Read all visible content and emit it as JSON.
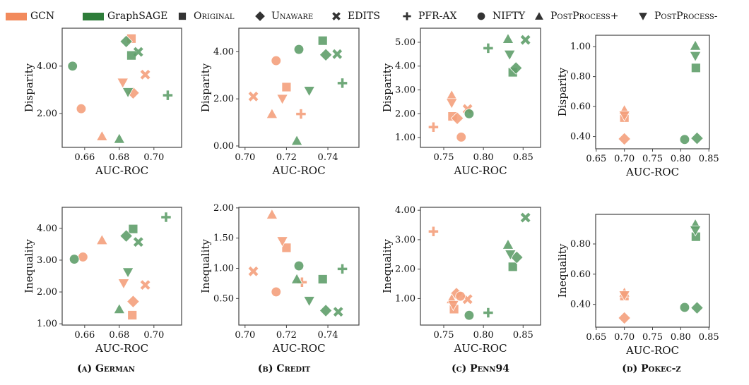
{
  "legend": {
    "models": [
      {
        "name": "GCN",
        "color": "#f28a5c"
      },
      {
        "name": "GraphSAGE",
        "color": "#2e7d3a"
      }
    ],
    "methods": [
      {
        "name": "Original",
        "marker": "square"
      },
      {
        "name": "Unaware",
        "marker": "diamond"
      },
      {
        "name": "EDITS",
        "marker": "x"
      },
      {
        "name": "PFR-AX",
        "marker": "plus"
      },
      {
        "name": "NIFTY",
        "marker": "circle"
      },
      {
        "name": "PostProcess+",
        "marker": "triangle-up"
      },
      {
        "name": "PostProcess-",
        "marker": "triangle-down"
      }
    ]
  },
  "point_colors": {
    "GCN": "#f4a07c",
    "GraphSAGE": "#5f9e6a"
  },
  "captions": [
    "(a) German",
    "(b) Credit",
    "(c) Penn94",
    "(d) Pokec-z"
  ],
  "chart_data": [
    {
      "type": "scatter",
      "dataset": "German",
      "xlabel": "AUC-ROC",
      "ylabel": "Disparity",
      "xlim": [
        0.647,
        0.716
      ],
      "ylim": [
        0.57,
        5.6
      ],
      "xticks": [
        "0.66",
        "0.68",
        "0.70"
      ],
      "yticks": [
        "2.00",
        "4.00"
      ],
      "series": [
        {
          "name": "GCN",
          "points": [
            [
              "Original",
              0.687,
              5.16
            ],
            [
              "Unaware",
              0.688,
              2.87
            ],
            [
              "EDITS",
              0.695,
              3.64
            ],
            [
              "NIFTY",
              0.658,
              2.2
            ],
            [
              "PostProcess+",
              0.67,
              1.04
            ],
            [
              "PostProcess-",
              0.682,
              3.3
            ]
          ]
        },
        {
          "name": "GraphSAGE",
          "points": [
            [
              "Original",
              0.687,
              4.45
            ],
            [
              "Unaware",
              0.684,
              5.04
            ],
            [
              "EDITS",
              0.691,
              4.6
            ],
            [
              "PFR-AX",
              0.708,
              2.77
            ],
            [
              "NIFTY",
              0.653,
              4.0
            ],
            [
              "PostProcess+",
              0.68,
              0.93
            ],
            [
              "PostProcess-",
              0.685,
              2.9
            ]
          ]
        }
      ]
    },
    {
      "type": "scatter",
      "dataset": "Credit",
      "xlabel": "AUC-ROC",
      "ylabel": "Disparity",
      "xlim": [
        0.697,
        0.755
      ],
      "ylim": [
        -0.06,
        5.0
      ],
      "xticks": [
        "0.70",
        "0.72",
        "0.74"
      ],
      "yticks": [
        "0.00",
        "2.00",
        "4.00"
      ],
      "series": [
        {
          "name": "GCN",
          "points": [
            [
              "Original",
              0.72,
              2.5
            ],
            [
              "EDITS",
              0.704,
              2.1
            ],
            [
              "PFR-AX",
              0.727,
              1.36
            ],
            [
              "NIFTY",
              0.715,
              3.62
            ],
            [
              "PostProcess+",
              0.713,
              1.36
            ],
            [
              "PostProcess-",
              0.718,
              2.0
            ]
          ]
        },
        {
          "name": "GraphSAGE",
          "points": [
            [
              "Original",
              0.7375,
              4.47
            ],
            [
              "Unaware",
              0.739,
              3.87
            ],
            [
              "EDITS",
              0.7445,
              3.9
            ],
            [
              "PFR-AX",
              0.747,
              2.67
            ],
            [
              "NIFTY",
              0.726,
              4.1
            ],
            [
              "PostProcess+",
              0.725,
              0.22
            ],
            [
              "PostProcess-",
              0.731,
              2.34
            ]
          ]
        }
      ]
    },
    {
      "type": "scatter",
      "dataset": "Penn94",
      "xlabel": "AUC-ROC",
      "ylabel": "Disparity",
      "xlim": [
        0.7206,
        0.872
      ],
      "ylim": [
        0.59,
        5.59
      ],
      "xticks": [
        "0.75",
        "0.80",
        "0.85"
      ],
      "yticks": [
        "1.00",
        "2.00",
        "3.00",
        "4.00",
        "5.00"
      ],
      "series": [
        {
          "name": "GCN",
          "points": [
            [
              "Original",
              0.761,
              1.89
            ],
            [
              "Unaware",
              0.767,
              1.81
            ],
            [
              "EDITS",
              0.78,
              2.2
            ],
            [
              "PFR-AX",
              0.737,
              1.44
            ],
            [
              "NIFTY",
              0.772,
              1.02
            ],
            [
              "PostProcess+",
              0.76,
              2.77
            ],
            [
              "PostProcess-",
              0.76,
              2.45
            ]
          ]
        },
        {
          "name": "GraphSAGE",
          "points": [
            [
              "Original",
              0.837,
              3.74
            ],
            [
              "Unaware",
              0.841,
              3.92
            ],
            [
              "EDITS",
              0.853,
              5.1
            ],
            [
              "PFR-AX",
              0.806,
              4.75
            ],
            [
              "NIFTY",
              0.782,
              2.0
            ],
            [
              "PostProcess+",
              0.831,
              5.14
            ],
            [
              "PostProcess-",
              0.833,
              4.48
            ]
          ]
        }
      ]
    },
    {
      "type": "scatter",
      "dataset": "Pokec-z",
      "xlabel": "AUC-ROC",
      "ylabel": "Disparity",
      "xlim": [
        0.649,
        0.851
      ],
      "ylim": [
        0.318,
        1.076
      ],
      "xticks": [
        "0.65",
        "0.70",
        "0.75",
        "0.80",
        "0.85"
      ],
      "yticks": [
        "0.40",
        "0.60",
        "0.80",
        "1.00"
      ],
      "series": [
        {
          "name": "GCN",
          "points": [
            [
              "Original",
              0.7,
              0.526
            ],
            [
              "Unaware",
              0.7,
              0.384
            ],
            [
              "PostProcess+",
              0.7,
              0.576
            ],
            [
              "PostProcess-",
              0.7,
              0.54
            ]
          ]
        },
        {
          "name": "GraphSAGE",
          "points": [
            [
              "Original",
              0.827,
              0.858
            ],
            [
              "Unaware",
              0.829,
              0.388
            ],
            [
              "NIFTY",
              0.807,
              0.38
            ],
            [
              "PostProcess+",
              0.826,
              1.006
            ],
            [
              "PostProcess-",
              0.826,
              0.937
            ]
          ]
        }
      ]
    },
    {
      "type": "scatter",
      "dataset": "German",
      "xlabel": "AUC-ROC",
      "ylabel": "Inequality",
      "xlim": [
        0.647,
        0.716
      ],
      "ylim": [
        0.96,
        4.66
      ],
      "xticks": [
        "0.66",
        "0.68",
        "0.70"
      ],
      "yticks": [
        "1.00",
        "2.00",
        "3.00",
        "4.00"
      ],
      "series": [
        {
          "name": "GCN",
          "points": [
            [
              "Original",
              0.6875,
              1.27
            ],
            [
              "Unaware",
              0.688,
              1.7
            ],
            [
              "EDITS",
              0.695,
              2.22
            ],
            [
              "NIFTY",
              0.659,
              3.1
            ],
            [
              "PostProcess+",
              0.67,
              3.63
            ],
            [
              "PostProcess-",
              0.6825,
              2.27
            ]
          ]
        },
        {
          "name": "GraphSAGE",
          "points": [
            [
              "Original",
              0.688,
              3.98
            ],
            [
              "Unaware",
              0.684,
              3.76
            ],
            [
              "EDITS",
              0.691,
              3.57
            ],
            [
              "PFR-AX",
              0.707,
              4.35
            ],
            [
              "NIFTY",
              0.654,
              3.03
            ],
            [
              "PostProcess+",
              0.68,
              1.46
            ],
            [
              "PostProcess-",
              0.685,
              2.62
            ]
          ]
        }
      ]
    },
    {
      "type": "scatter",
      "dataset": "Credit",
      "xlabel": "AUC-ROC",
      "ylabel": "Inequality",
      "xlim": [
        0.697,
        0.755
      ],
      "ylim": [
        0.06,
        2.01
      ],
      "xticks": [
        "0.70",
        "0.72",
        "0.74"
      ],
      "yticks": [
        "0.50",
        "1.00",
        "1.50",
        "2.00"
      ],
      "series": [
        {
          "name": "GCN",
          "points": [
            [
              "Original",
              0.72,
              1.34
            ],
            [
              "EDITS",
              0.704,
              0.95
            ],
            [
              "PFR-AX",
              0.7275,
              0.77
            ],
            [
              "NIFTY",
              0.715,
              0.61
            ],
            [
              "PostProcess+",
              0.713,
              1.89
            ],
            [
              "PostProcess-",
              0.718,
              1.45
            ]
          ]
        },
        {
          "name": "GraphSAGE",
          "points": [
            [
              "Original",
              0.7375,
              0.82
            ],
            [
              "Unaware",
              0.739,
              0.3
            ],
            [
              "EDITS",
              0.745,
              0.28
            ],
            [
              "PFR-AX",
              0.747,
              0.99
            ],
            [
              "NIFTY",
              0.726,
              1.04
            ],
            [
              "PostProcess+",
              0.725,
              0.82
            ],
            [
              "PostProcess-",
              0.731,
              0.46
            ]
          ]
        }
      ]
    },
    {
      "type": "scatter",
      "dataset": "Penn94",
      "xlabel": "AUC-ROC",
      "ylabel": "Inequality",
      "xlim": [
        0.7206,
        0.872
      ],
      "ylim": [
        0.1,
        4.1
      ],
      "xticks": [
        "0.75",
        "0.80",
        "0.85"
      ],
      "yticks": [
        "1.00",
        "2.00",
        "3.00",
        "4.00"
      ],
      "series": [
        {
          "name": "GCN",
          "points": [
            [
              "Original",
              0.763,
              0.64
            ],
            [
              "Unaware",
              0.766,
              1.17
            ],
            [
              "EDITS",
              0.78,
              0.98
            ],
            [
              "PFR-AX",
              0.737,
              3.28
            ],
            [
              "NIFTY",
              0.771,
              1.08
            ],
            [
              "PostProcess+",
              0.76,
              0.98
            ],
            [
              "PostProcess-",
              0.762,
              0.78
            ]
          ]
        },
        {
          "name": "GraphSAGE",
          "points": [
            [
              "Original",
              0.837,
              2.08
            ],
            [
              "Unaware",
              0.842,
              2.4
            ],
            [
              "EDITS",
              0.853,
              3.75
            ],
            [
              "PFR-AX",
              0.806,
              0.52
            ],
            [
              "NIFTY",
              0.782,
              0.43
            ],
            [
              "PostProcess+",
              0.831,
              2.83
            ],
            [
              "PostProcess-",
              0.834,
              2.5
            ]
          ]
        }
      ]
    },
    {
      "type": "scatter",
      "dataset": "Pokec-z",
      "xlabel": "AUC-ROC",
      "ylabel": "Inequality",
      "xlim": [
        0.649,
        0.851
      ],
      "ylim": [
        0.249,
        0.996
      ],
      "xticks": [
        "0.65",
        "0.70",
        "0.75",
        "0.80",
        "0.85"
      ],
      "yticks": [
        "0.40",
        "0.60",
        "0.80"
      ],
      "series": [
        {
          "name": "GCN",
          "points": [
            [
              "Original",
              0.7,
              0.455
            ],
            [
              "Unaware",
              0.7,
              0.31
            ],
            [
              "PostProcess+",
              0.7,
              0.478
            ],
            [
              "PostProcess-",
              0.7,
              0.46
            ]
          ]
        },
        {
          "name": "GraphSAGE",
          "points": [
            [
              "Original",
              0.827,
              0.848
            ],
            [
              "Unaware",
              0.829,
              0.377
            ],
            [
              "NIFTY",
              0.807,
              0.38
            ],
            [
              "PostProcess+",
              0.826,
              0.93
            ],
            [
              "PostProcess-",
              0.826,
              0.89
            ]
          ]
        }
      ]
    }
  ]
}
